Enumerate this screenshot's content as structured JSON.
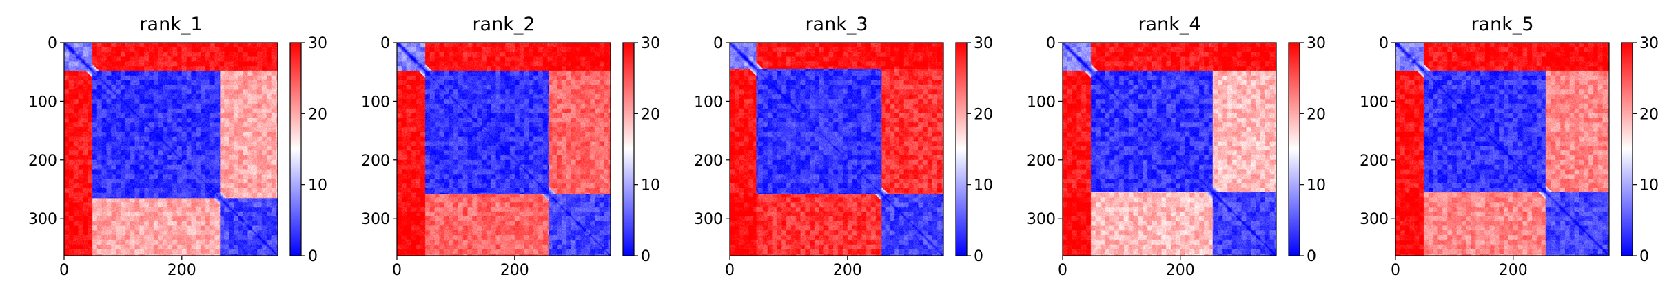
{
  "chart_data": [
    {
      "type": "heatmap",
      "title": "rank_1",
      "x": {
        "lim": [
          0,
          363
        ],
        "ticks": [
          0,
          200
        ],
        "tick_labels": [
          "0",
          "200"
        ]
      },
      "y": {
        "lim": [
          363,
          0
        ],
        "ticks": [
          0,
          100,
          200,
          300
        ],
        "tick_labels": [
          "0",
          "100",
          "200",
          "300"
        ]
      },
      "colorbar": {
        "range": [
          0,
          30
        ],
        "ticks": [
          0,
          10,
          20,
          30
        ],
        "tick_labels": [
          "0",
          "10",
          "20",
          "30"
        ],
        "colormap": [
          "#0000ff",
          "#ffffff",
          "#ff0000"
        ]
      },
      "domains": [
        [
          0,
          48
        ],
        [
          48,
          265
        ],
        [
          265,
          363
        ]
      ],
      "inter_domain_distance": {
        "0-1": 29,
        "0-2": 30,
        "1-2": 20
      },
      "intra_domain_distance": {
        "0": 8,
        "1": 3,
        "2": 4
      }
    },
    {
      "type": "heatmap",
      "title": "rank_2",
      "x": {
        "lim": [
          0,
          363
        ],
        "ticks": [
          0,
          200
        ],
        "tick_labels": [
          "0",
          "200"
        ]
      },
      "y": {
        "lim": [
          363,
          0
        ],
        "ticks": [
          0,
          100,
          200,
          300
        ],
        "tick_labels": [
          "0",
          "100",
          "200",
          "300"
        ]
      },
      "colorbar": {
        "range": [
          0,
          30
        ],
        "ticks": [
          0,
          10,
          20,
          30
        ],
        "tick_labels": [
          "0",
          "10",
          "20",
          "30"
        ],
        "colormap": [
          "#0000ff",
          "#ffffff",
          "#ff0000"
        ]
      },
      "domains": [
        [
          0,
          48
        ],
        [
          48,
          258
        ],
        [
          258,
          363
        ]
      ],
      "inter_domain_distance": {
        "0-1": 29,
        "0-2": 30,
        "1-2": 24
      },
      "intra_domain_distance": {
        "0": 8,
        "1": 3,
        "2": 4
      }
    },
    {
      "type": "heatmap",
      "title": "rank_3",
      "x": {
        "lim": [
          0,
          363
        ],
        "ticks": [
          0,
          200
        ],
        "tick_labels": [
          "0",
          "200"
        ]
      },
      "y": {
        "lim": [
          363,
          0
        ],
        "ticks": [
          0,
          100,
          200,
          300
        ],
        "tick_labels": [
          "0",
          "100",
          "200",
          "300"
        ]
      },
      "colorbar": {
        "range": [
          0,
          30
        ],
        "ticks": [
          0,
          10,
          20,
          30
        ],
        "tick_labels": [
          "0",
          "10",
          "20",
          "30"
        ],
        "colormap": [
          "#0000ff",
          "#ffffff",
          "#ff0000"
        ]
      },
      "domains": [
        [
          0,
          45
        ],
        [
          45,
          258
        ],
        [
          258,
          363
        ]
      ],
      "inter_domain_distance": {
        "0-1": 29,
        "0-2": 30,
        "1-2": 27
      },
      "intra_domain_distance": {
        "0": 8,
        "1": 3,
        "2": 4
      }
    },
    {
      "type": "heatmap",
      "title": "rank_4",
      "x": {
        "lim": [
          0,
          363
        ],
        "ticks": [
          0,
          200
        ],
        "tick_labels": [
          "0",
          "200"
        ]
      },
      "y": {
        "lim": [
          363,
          0
        ],
        "ticks": [
          0,
          100,
          200,
          300
        ],
        "tick_labels": [
          "0",
          "100",
          "200",
          "300"
        ]
      },
      "colorbar": {
        "range": [
          0,
          30
        ],
        "ticks": [
          0,
          10,
          20,
          30
        ],
        "tick_labels": [
          "0",
          "10",
          "20",
          "30"
        ],
        "colormap": [
          "#0000ff",
          "#ffffff",
          "#ff0000"
        ]
      },
      "domains": [
        [
          0,
          48
        ],
        [
          48,
          255
        ],
        [
          255,
          363
        ]
      ],
      "inter_domain_distance": {
        "0-1": 29,
        "0-2": 30,
        "1-2": 19
      },
      "intra_domain_distance": {
        "0": 8,
        "1": 3,
        "2": 4
      }
    },
    {
      "type": "heatmap",
      "title": "rank_5",
      "x": {
        "lim": [
          0,
          363
        ],
        "ticks": [
          0,
          200
        ],
        "tick_labels": [
          "0",
          "200"
        ]
      },
      "y": {
        "lim": [
          363,
          0
        ],
        "ticks": [
          0,
          100,
          200,
          300
        ],
        "tick_labels": [
          "0",
          "100",
          "200",
          "300"
        ]
      },
      "colorbar": {
        "range": [
          0,
          30
        ],
        "ticks": [
          0,
          10,
          20,
          30
        ],
        "tick_labels": [
          "0",
          "10",
          "20",
          "30"
        ],
        "colormap": [
          "#0000ff",
          "#ffffff",
          "#ff0000"
        ]
      },
      "domains": [
        [
          0,
          48
        ],
        [
          48,
          255
        ],
        [
          255,
          363
        ]
      ],
      "inter_domain_distance": {
        "0-1": 29,
        "0-2": 30,
        "1-2": 22
      },
      "intra_domain_distance": {
        "0": 8,
        "1": 3,
        "2": 4
      }
    }
  ]
}
